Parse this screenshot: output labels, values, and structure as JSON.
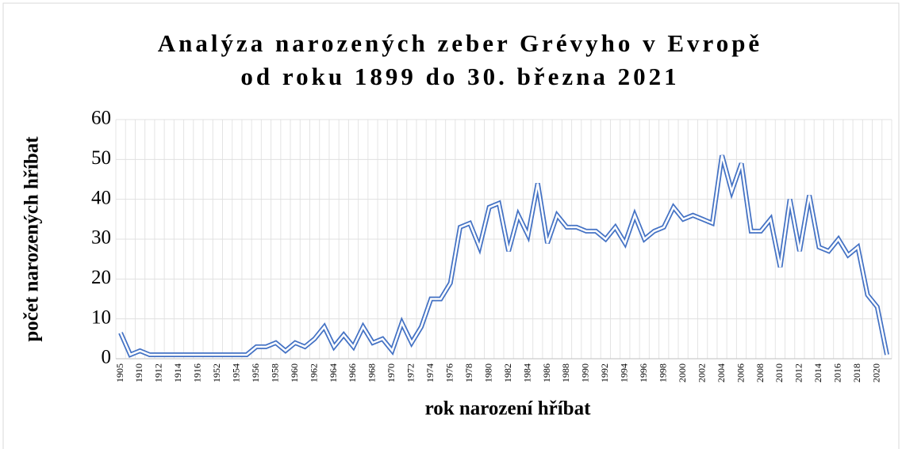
{
  "chart_data": {
    "type": "line",
    "title": "Analýza narozených zeber Grévyho v Evropě",
    "subtitle": "od roku 1899 do 30. března 2021",
    "x_label": "rok narození hříbat",
    "y_label": "počet narozených hříbat",
    "categories": [
      "1905",
      null,
      "1910",
      null,
      "1912",
      null,
      "1914",
      null,
      "1916",
      null,
      "1952",
      null,
      "1954",
      null,
      "1956",
      null,
      "1958",
      null,
      "1960",
      null,
      "1962",
      null,
      "1964",
      null,
      "1966",
      null,
      "1968",
      null,
      "1970",
      null,
      "1972",
      null,
      "1974",
      null,
      "1976",
      null,
      "1978",
      null,
      "1980",
      null,
      "1982",
      null,
      "1984",
      null,
      "1986",
      null,
      "1988",
      null,
      "1990",
      null,
      "1992",
      null,
      "1994",
      null,
      "1996",
      null,
      "1998",
      null,
      "2000",
      null,
      "2002",
      null,
      "2004",
      null,
      "2006",
      null,
      "2008",
      null,
      "2010",
      null,
      "2012",
      null,
      "2014",
      null,
      "2016",
      null,
      "2018",
      null,
      "2020",
      null
    ],
    "series": [
      {
        "name": "počet narozených hříbat",
        "color": "#4472c4",
        "values": [
          6.5,
          1,
          2,
          1,
          1,
          1,
          1,
          1,
          1,
          1,
          1,
          1,
          1,
          1,
          3,
          3,
          4,
          2,
          4,
          3,
          5,
          8,
          3,
          6,
          3,
          8,
          4,
          5,
          2,
          9,
          4,
          8,
          15,
          15,
          19,
          33,
          34,
          28,
          38,
          39,
          27,
          36,
          31,
          44,
          29,
          36,
          33,
          33,
          32,
          32,
          30,
          33,
          29,
          36,
          30,
          32,
          33,
          38,
          35,
          36,
          35,
          34,
          51,
          42,
          49,
          32,
          32,
          35,
          23,
          40,
          27,
          41,
          28,
          27,
          30,
          26,
          28,
          16,
          13,
          1
        ]
      }
    ],
    "ylim": [
      0,
      60
    ],
    "yticks": [
      0,
      10,
      20,
      30,
      40,
      50,
      60
    ],
    "grid": true
  }
}
